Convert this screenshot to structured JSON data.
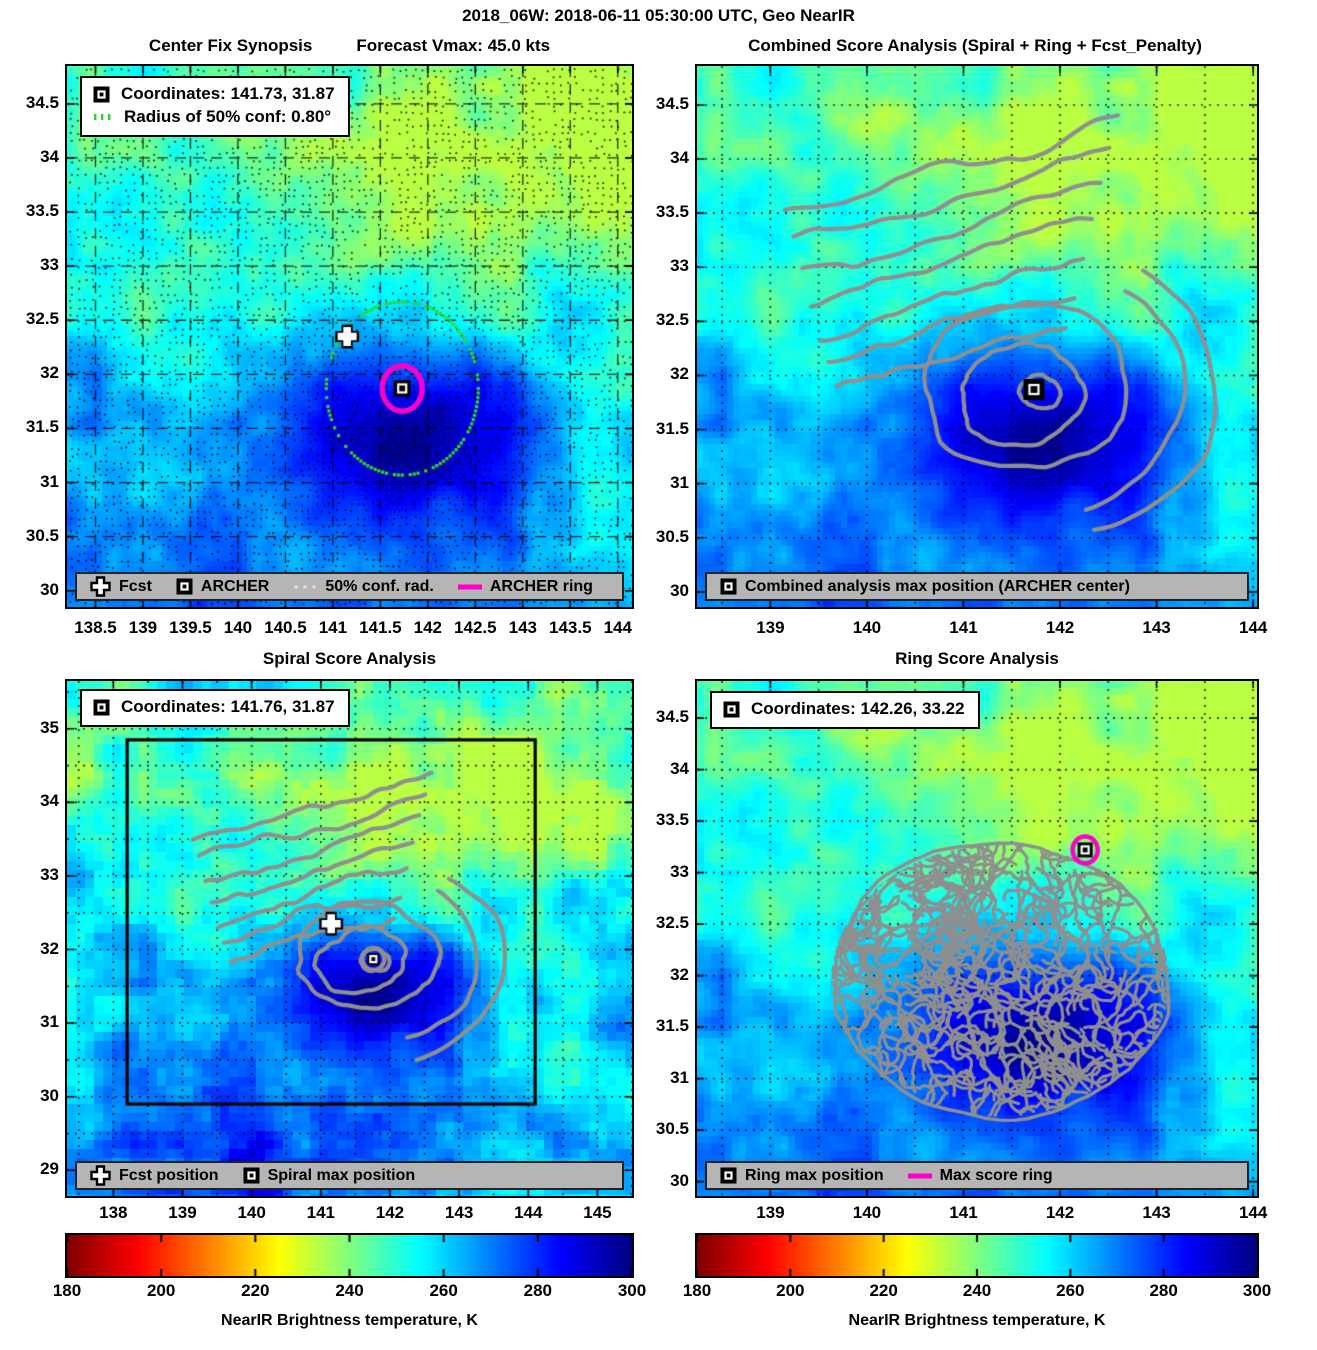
{
  "chart_data": {
    "figure_title": "2018_06W: 2018-06-11 05:30:00 UTC, Geo NearIR",
    "type": "heatmap",
    "colors": {
      "magenta": "#ff00cc",
      "contour_gray": "#8f8f8f",
      "legend_bar_bg": "#b5b5b5",
      "conf_green": "#2ed52e",
      "grid_black": "#000000"
    },
    "colorbar": {
      "label": "NearIR Brightness temperature, K",
      "range": [
        180,
        300
      ],
      "ticks": [
        180,
        200,
        220,
        240,
        260,
        280,
        300
      ],
      "colormap": "jet-reversed"
    },
    "panels": [
      {
        "id": "center-fix-synopsis",
        "title": "Center Fix Synopsis",
        "subtitle": "Forecast Vmax: 45.0 kts",
        "xlim": [
          138.2,
          144.15
        ],
        "ylim": [
          29.85,
          34.85
        ],
        "xticks": [
          138.5,
          139,
          139.5,
          140,
          140.5,
          141,
          141.5,
          142,
          142.5,
          143,
          143.5,
          144
        ],
        "yticks": [
          30,
          30.5,
          31,
          31.5,
          32,
          32.5,
          33,
          33.5,
          34,
          34.5
        ],
        "info_box": [
          "Coordinates: 141.73, 31.87",
          "Radius of 50% conf: 0.80°"
        ],
        "markers": {
          "archer": {
            "lon": 141.73,
            "lat": 31.87
          },
          "fcst": {
            "lon": 141.15,
            "lat": 32.35
          },
          "conf_radius_deg": 0.8,
          "archer_ring_radius_deg": 0.21
        },
        "legend": [
          {
            "marker": "fcst-cross",
            "label": "Fcst"
          },
          {
            "marker": "square-marker",
            "label": "ARCHER"
          },
          {
            "marker": "conf-dots",
            "label": "50% conf. rad."
          },
          {
            "marker": "magenta-dash",
            "label": "ARCHER ring"
          }
        ]
      },
      {
        "id": "combined-score-analysis",
        "title": "Combined Score Analysis (Spiral + Ring + Fcst_Penalty)",
        "xlim": [
          138.24,
          144.04
        ],
        "ylim": [
          29.86,
          34.86
        ],
        "xticks": [
          139,
          140,
          141,
          142,
          143,
          144
        ],
        "yticks": [
          30,
          30.5,
          31,
          31.5,
          32,
          32.5,
          33,
          33.5,
          34,
          34.5
        ],
        "markers": {
          "combined_max": {
            "lon": 141.73,
            "lat": 31.87
          }
        },
        "legend": [
          {
            "marker": "square-marker",
            "label": "Combined analysis max position (ARCHER center)"
          }
        ]
      },
      {
        "id": "spiral-score-analysis",
        "title": "Spiral Score Analysis",
        "xlim": [
          137.33,
          145.5
        ],
        "ylim": [
          28.65,
          35.65
        ],
        "xticks": [
          138,
          139,
          140,
          141,
          142,
          143,
          144,
          145
        ],
        "yticks": [
          29,
          30,
          31,
          32,
          33,
          34,
          35
        ],
        "info_box": [
          "Coordinates: 141.76, 31.87"
        ],
        "markers": {
          "spiral_max": {
            "lon": 141.76,
            "lat": 31.87
          },
          "fcst": {
            "lon": 141.15,
            "lat": 32.35
          }
        },
        "analysis_box": {
          "lon": [
            138.2,
            144.1
          ],
          "lat": [
            29.9,
            34.85
          ]
        },
        "legend": [
          {
            "marker": "fcst-cross",
            "label": "Fcst position"
          },
          {
            "marker": "square-marker",
            "label": "Spiral max position"
          }
        ]
      },
      {
        "id": "ring-score-analysis",
        "title": "Ring Score Analysis",
        "xlim": [
          138.24,
          144.04
        ],
        "ylim": [
          29.86,
          34.86
        ],
        "xticks": [
          139,
          140,
          141,
          142,
          143,
          144
        ],
        "yticks": [
          30,
          30.5,
          31,
          31.5,
          32,
          32.5,
          33,
          33.5,
          34,
          34.5
        ],
        "info_box": [
          "Coordinates: 142.26, 33.22"
        ],
        "markers": {
          "ring_max": {
            "lon": 142.26,
            "lat": 33.22
          },
          "max_ring_radius_deg": 0.13
        },
        "legend": [
          {
            "marker": "square-marker",
            "label": "Ring max position"
          },
          {
            "marker": "magenta-dash",
            "label": "Max score ring"
          }
        ]
      }
    ]
  }
}
